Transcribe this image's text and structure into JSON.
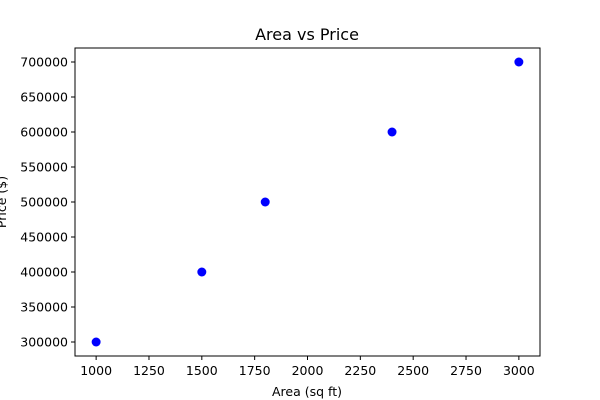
{
  "chart_data": {
    "type": "scatter",
    "title": "Area vs Price",
    "xlabel": "Area (sq ft)",
    "ylabel": "Price ($)",
    "points": [
      {
        "x": 1000,
        "y": 300000
      },
      {
        "x": 1500,
        "y": 400000
      },
      {
        "x": 1800,
        "y": 500000
      },
      {
        "x": 2400,
        "y": 600000
      },
      {
        "x": 3000,
        "y": 700000
      }
    ],
    "xlim": [
      900,
      3100
    ],
    "ylim": [
      280000,
      720000
    ],
    "xticks": [
      1000,
      1250,
      1500,
      1750,
      2000,
      2250,
      2500,
      2750,
      3000
    ],
    "yticks": [
      300000,
      350000,
      400000,
      450000,
      500000,
      550000,
      600000,
      650000,
      700000
    ],
    "marker_color": "#0000ff",
    "grid": false,
    "legend": "none"
  }
}
